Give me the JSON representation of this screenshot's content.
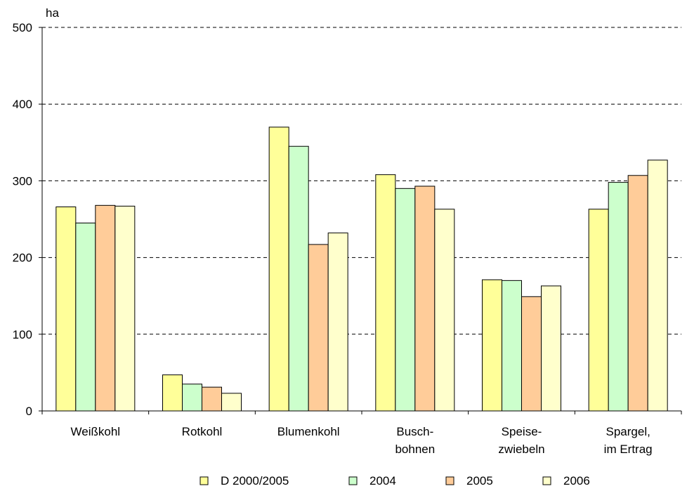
{
  "chart_data": {
    "type": "bar",
    "ylabel": "ha",
    "ylim": [
      0,
      500
    ],
    "yticks": [
      0,
      100,
      200,
      300,
      400,
      500
    ],
    "grid": true,
    "legend_position": "bottom",
    "categories": [
      [
        "Weißkohl"
      ],
      [
        "Rotkohl"
      ],
      [
        "Blumenkohl"
      ],
      [
        "Busch-",
        "bohnen"
      ],
      [
        "Speise-",
        "zwiebeln"
      ],
      [
        "Spargel,",
        "im Ertrag"
      ]
    ],
    "series": [
      {
        "name": "D 2000/2005",
        "color": "#ffff99",
        "values": [
          266,
          47,
          370,
          308,
          171,
          263
        ]
      },
      {
        "name": "2004",
        "color": "#ccffcc",
        "values": [
          245,
          35,
          345,
          290,
          170,
          298
        ]
      },
      {
        "name": "2005",
        "color": "#ffcc99",
        "values": [
          268,
          31,
          217,
          293,
          149,
          307
        ]
      },
      {
        "name": "2006",
        "color": "#ffffcc",
        "values": [
          267,
          23,
          232,
          263,
          163,
          327
        ]
      }
    ]
  }
}
